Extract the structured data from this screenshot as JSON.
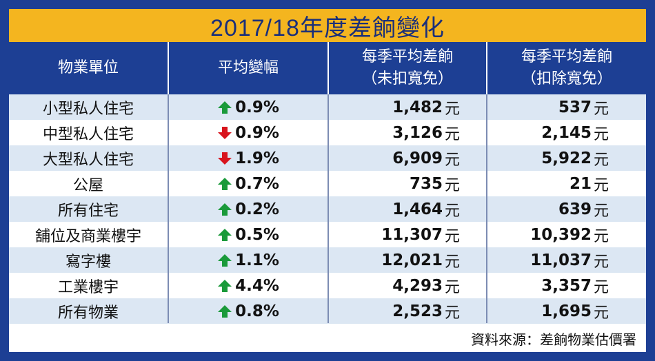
{
  "title": "2017/18年度差餉變化",
  "headers": {
    "unit": "物業單位",
    "change": "平均變幅",
    "rates_no_waiver_line1": "每季平均差餉",
    "rates_no_waiver_line2": "（未扣寬免）",
    "rates_waiver_line1": "每季平均差餉",
    "rates_waiver_line2": "（扣除寬免）"
  },
  "currency_unit": "元",
  "colors": {
    "up": "#1a9a3a",
    "down": "#d8141d",
    "header_bg": "#1d3f94",
    "title_bg": "#f4b51f",
    "alt_row": "#dce7f3"
  },
  "rows": [
    {
      "unit": "小型私人住宅",
      "direction": "up",
      "arrow_icon": "arrow-up-icon",
      "change": "0.9%",
      "before": "1,482",
      "after": "537"
    },
    {
      "unit": "中型私人住宅",
      "direction": "down",
      "arrow_icon": "arrow-down-icon",
      "change": "0.9%",
      "before": "3,126",
      "after": "2,145"
    },
    {
      "unit": "大型私人住宅",
      "direction": "down",
      "arrow_icon": "arrow-down-icon",
      "change": "1.9%",
      "before": "6,909",
      "after": "5,922"
    },
    {
      "unit": "公屋",
      "direction": "up",
      "arrow_icon": "arrow-up-icon",
      "change": "0.7%",
      "before": "735",
      "after": "21"
    },
    {
      "unit": "所有住宅",
      "direction": "up",
      "arrow_icon": "arrow-up-icon",
      "change": "0.2%",
      "before": "1,464",
      "after": "639"
    },
    {
      "unit": "舖位及商業樓宇",
      "direction": "up",
      "arrow_icon": "arrow-up-icon",
      "change": "0.5%",
      "before": "11,307",
      "after": "10,392"
    },
    {
      "unit": "寫字樓",
      "direction": "up",
      "arrow_icon": "arrow-up-icon",
      "change": "1.1%",
      "before": "12,021",
      "after": "11,037"
    },
    {
      "unit": "工業樓宇",
      "direction": "up",
      "arrow_icon": "arrow-up-icon",
      "change": "4.4%",
      "before": "4,293",
      "after": "3,357"
    },
    {
      "unit": "所有物業",
      "direction": "up",
      "arrow_icon": "arrow-up-icon",
      "change": "0.8%",
      "before": "2,523",
      "after": "1,695"
    }
  ],
  "source": "資料來源：差餉物業估價署"
}
